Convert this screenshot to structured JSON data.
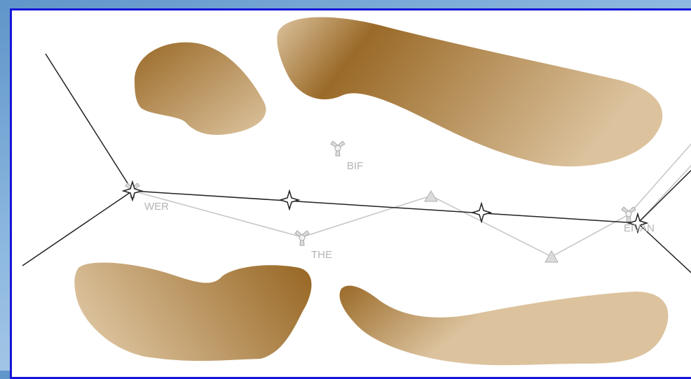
{
  "map": {
    "colors": {
      "frame_border": "#1515d8",
      "terrain_dark": "#9a6a28",
      "terrain_light": "#dcc39e",
      "route_primary": "#222222",
      "route_alternate": "#c8c8c8",
      "waypoint_fill": "#dcdcdc"
    },
    "waypoints": [
      {
        "id": "WER",
        "label": "WER",
        "symbol": "vor-dme"
      },
      {
        "id": "BIF",
        "label": "BIF",
        "symbol": "vor-dme"
      },
      {
        "id": "THE",
        "label": "THE",
        "symbol": "vor-dme"
      },
      {
        "id": "EIVAN",
        "label": "EIVAN",
        "symbol": "vor-dme"
      }
    ],
    "routes": {
      "primary": {
        "type": "active-route",
        "fix_symbol": "four-point-star"
      },
      "alternate": {
        "type": "alternate-route",
        "fix_symbol": "triangle"
      }
    },
    "terrain": [
      "terrain-area-1",
      "terrain-area-2",
      "terrain-area-3",
      "terrain-area-4"
    ]
  }
}
